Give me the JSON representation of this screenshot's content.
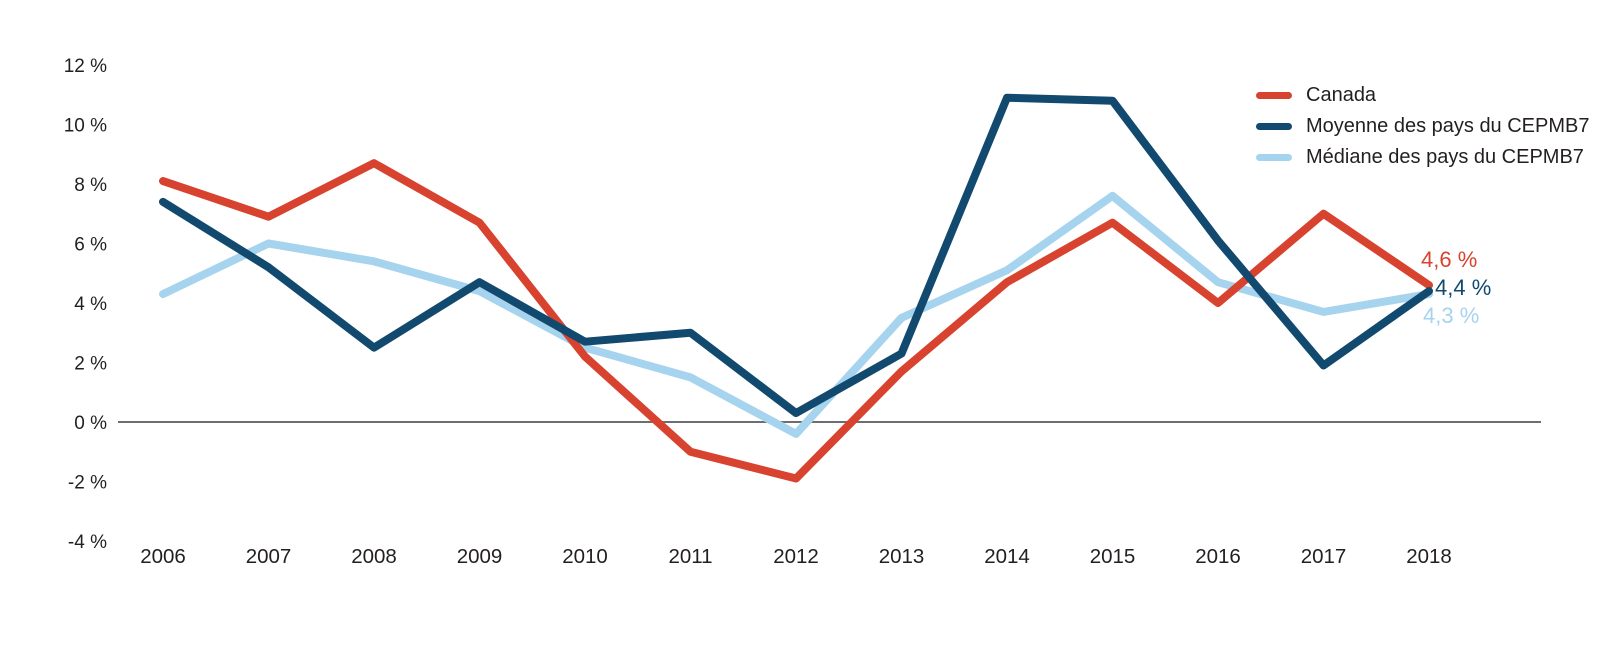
{
  "chart_data": {
    "type": "line",
    "title": "",
    "xlabel": "",
    "ylabel": "",
    "x": [
      2006,
      2007,
      2008,
      2009,
      2010,
      2011,
      2012,
      2013,
      2014,
      2015,
      2016,
      2017,
      2018
    ],
    "series": [
      {
        "name": "Canada",
        "color": "#d8432f",
        "values": [
          8.1,
          6.9,
          8.7,
          6.7,
          2.2,
          -1.0,
          -1.9,
          1.7,
          4.7,
          6.7,
          4.0,
          7.0,
          4.6
        ]
      },
      {
        "name": "Moyenne des pays du CEPMB7",
        "color": "#11496f",
        "values": [
          7.4,
          5.2,
          2.5,
          4.7,
          2.7,
          3.0,
          0.3,
          2.3,
          10.9,
          10.8,
          6.1,
          1.9,
          4.4
        ]
      },
      {
        "name": "Médiane des pays du CEPMB7",
        "color": "#a6d3ee",
        "values": [
          4.3,
          6.0,
          5.4,
          4.4,
          2.5,
          1.5,
          -0.4,
          3.5,
          5.1,
          7.6,
          4.7,
          3.7,
          4.3
        ]
      }
    ],
    "yaxis": {
      "range": [
        -4,
        12
      ],
      "ticks": [
        {
          "label": "12 %",
          "value": 12
        },
        {
          "label": "10 %",
          "value": 10
        },
        {
          "label": "8 %",
          "value": 8
        },
        {
          "label": "6 %",
          "value": 6
        },
        {
          "label": "4 %",
          "value": 4
        },
        {
          "label": "2 %",
          "value": 2
        },
        {
          "label": "0 %",
          "value": 0
        },
        {
          "label": "-2 %",
          "value": -2
        },
        {
          "label": "-4 %",
          "value": -4
        }
      ]
    },
    "xaxis": {
      "labels": [
        "2006",
        "2007",
        "2008",
        "2009",
        "2010",
        "2011",
        "2012",
        "2013",
        "2014",
        "2015",
        "2016",
        "2017",
        "2018"
      ]
    },
    "grid": "zero-line-only",
    "zero_line_color": "#6d6e71",
    "legend_position": "top-right",
    "end_labels": [
      {
        "text": "4,6 %",
        "color": "#d8432f"
      },
      {
        "text": "4,4 %",
        "color": "#11496f"
      },
      {
        "text": "4,3 %",
        "color": "#a6d3ee"
      }
    ]
  }
}
